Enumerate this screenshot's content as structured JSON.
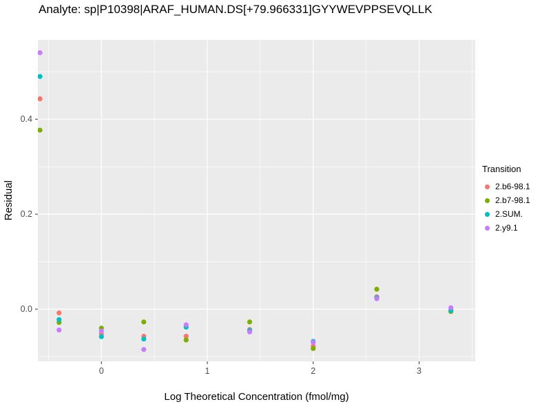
{
  "title": "Analyte: sp|P10398|ARAF_HUMAN.DS[+79.966331]GYYWEVPPSEVQLLK",
  "chart_data": {
    "type": "scatter",
    "title": "Analyte: sp|P10398|ARAF_HUMAN.DS[+79.966331]GYYWEVPPSEVQLLK",
    "xlabel": "Log Theoretical Concentration (fmol/mg)",
    "ylabel": "Residual",
    "legend_title": "Transition",
    "legend_position": "right",
    "grid": true,
    "panel_bg": "#EBEBEB",
    "grid_major_color": "#FFFFFF",
    "grid_minor_color": "#FFFFFF",
    "tick_label_color": "#4D4D4D",
    "xlim": [
      -0.6,
      3.53
    ],
    "ylim": [
      -0.11,
      0.567
    ],
    "x_ticks": [
      0,
      1,
      2,
      3
    ],
    "y_ticks": [
      0.0,
      0.2,
      0.4
    ],
    "x_minor_ticks": [
      -0.5,
      0.5,
      1.5,
      2.5,
      3.5
    ],
    "y_minor_ticks": [
      -0.1,
      0.1,
      0.3,
      0.5
    ],
    "x": [
      -0.58,
      -0.4,
      0.0,
      0.4,
      0.8,
      1.4,
      2.0,
      2.6,
      3.3
    ],
    "series": [
      {
        "name": "2.b6-98.1",
        "color": "#F8766D",
        "values": [
          0.443,
          -0.008,
          -0.052,
          -0.057,
          -0.057,
          -0.043,
          -0.078,
          0.026,
          -0.002
        ]
      },
      {
        "name": "2.b7-98.1",
        "color": "#7CAE00",
        "values": [
          0.377,
          -0.028,
          -0.04,
          -0.027,
          -0.065,
          -0.027,
          -0.083,
          0.042,
          -0.005
        ]
      },
      {
        "name": "2.SUM.",
        "color": "#00BFC4",
        "values": [
          0.49,
          -0.022,
          -0.058,
          -0.063,
          -0.038,
          -0.045,
          -0.068,
          0.024,
          -0.003
        ]
      },
      {
        "name": "2.y9.1",
        "color": "#C77CFF",
        "values": [
          0.54,
          -0.044,
          -0.046,
          -0.085,
          -0.033,
          -0.048,
          -0.07,
          0.022,
          0.003
        ]
      }
    ]
  }
}
